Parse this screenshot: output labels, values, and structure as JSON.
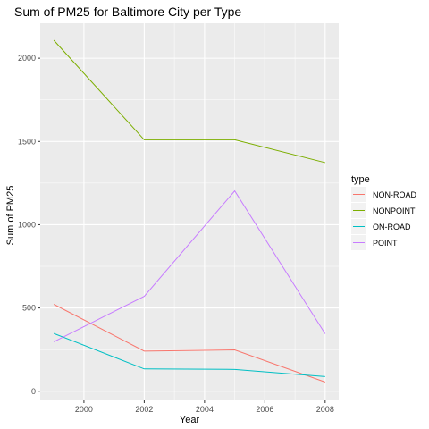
{
  "chart_data": {
    "type": "line",
    "title": "Sum of PM25 for Baltimore City per Type",
    "xlabel": "Year",
    "ylabel": "Sum of PM25",
    "x": [
      1999,
      2002,
      2005,
      2008
    ],
    "xlim": [
      1998.55,
      2008.45
    ],
    "ylim": [
      -55,
      2210
    ],
    "x_ticks": [
      2000,
      2002,
      2004,
      2006,
      2008
    ],
    "y_ticks": [
      0,
      500,
      1000,
      1500,
      2000
    ],
    "grid": true,
    "legend_title": "type",
    "legend_position": "right",
    "series": [
      {
        "name": "NON-ROAD",
        "color": "#F8766D",
        "values": [
          522,
          241,
          248,
          55
        ]
      },
      {
        "name": "NONPOINT",
        "color": "#7CAE00",
        "values": [
          2108,
          1510,
          1510,
          1373
        ]
      },
      {
        "name": "ON-ROAD",
        "color": "#00BFC4",
        "values": [
          347,
          134,
          131,
          88
        ]
      },
      {
        "name": "POINT",
        "color": "#C77CFF",
        "values": [
          297,
          570,
          1203,
          345
        ]
      }
    ]
  }
}
